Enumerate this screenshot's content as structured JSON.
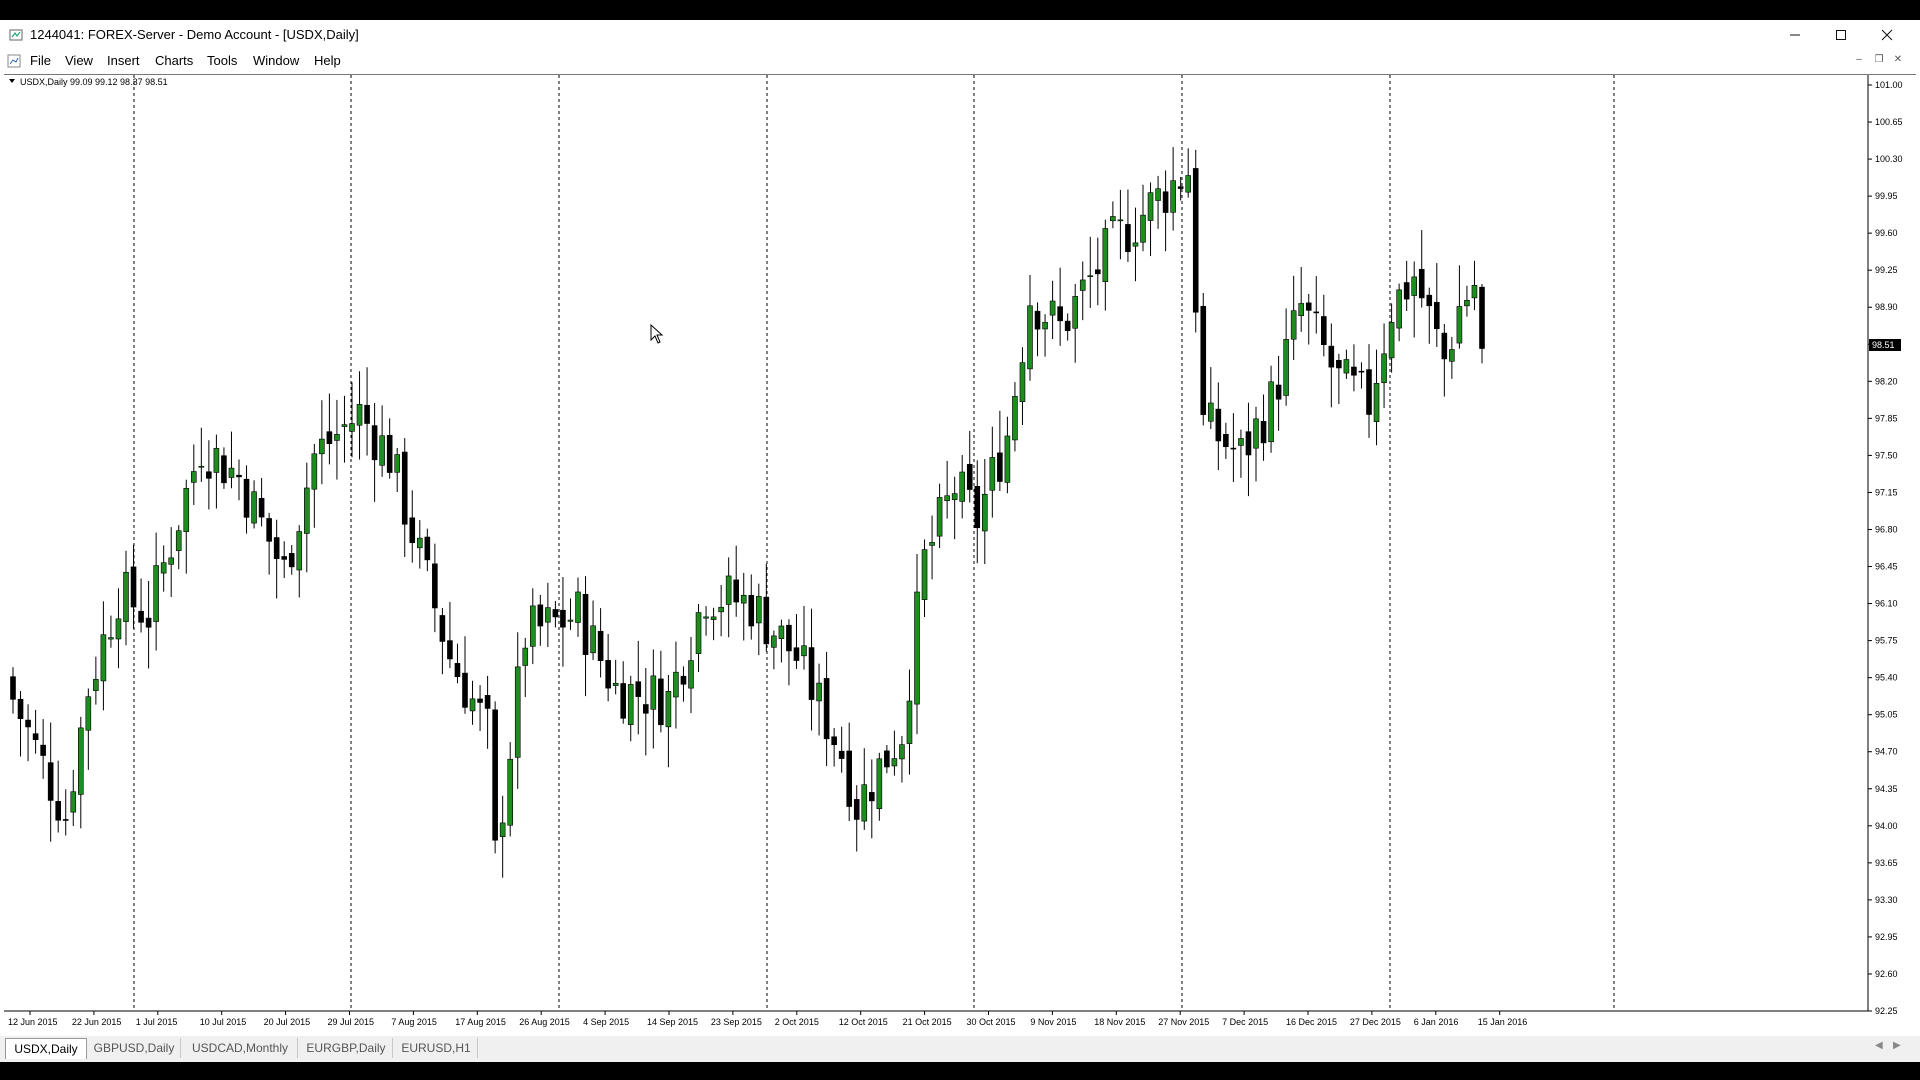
{
  "window": {
    "title": "1244041: FOREX-Server - Demo Account - [USDX,Daily]"
  },
  "menu": [
    "File",
    "View",
    "Insert",
    "Charts",
    "Tools",
    "Window",
    "Help"
  ],
  "chart": {
    "header": "USDX,Daily  99.09 99.12 98.37 98.51",
    "bid_label": "98.51",
    "date_labels": [
      "12 Jun 2015",
      "22 Jun 2015",
      "1 Jul 2015",
      "10 Jul 2015",
      "20 Jul 2015",
      "29 Jul 2015",
      "7 Aug 2015",
      "17 Aug 2015",
      "26 Aug 2015",
      "4 Sep 2015",
      "14 Sep 2015",
      "23 Sep 2015",
      "2 Oct 2015",
      "12 Oct 2015",
      "21 Oct 2015",
      "30 Oct 2015",
      "9 Nov 2015",
      "18 Nov 2015",
      "27 Nov 2015",
      "7 Dec 2015",
      "16 Dec 2015",
      "27 Dec 2015",
      "6 Jan 2016",
      "15 Jan 2016"
    ]
  },
  "chart_data": {
    "type": "candlestick",
    "symbol": "USDX",
    "timeframe": "Daily",
    "last_bar": {
      "open": 99.09,
      "high": 99.12,
      "low": 98.37,
      "close": 98.51
    },
    "ylim": [
      92.25,
      101.0
    ],
    "y_ticks": [
      "101.00",
      "100.65",
      "100.30",
      "99.95",
      "99.60",
      "99.25",
      "98.90",
      "98.55",
      "98.20",
      "97.85",
      "97.50",
      "97.15",
      "96.80",
      "96.45",
      "96.10",
      "95.75",
      "95.40",
      "95.05",
      "94.70",
      "94.35",
      "94.00",
      "93.65",
      "93.30",
      "92.95",
      "92.60",
      "92.25"
    ],
    "bull_color": "#1e8c1e",
    "bear_color": "#000000",
    "close_path": [
      [
        0,
        95.2
      ],
      [
        7,
        94.1
      ],
      [
        10,
        95.3
      ],
      [
        14,
        96.2
      ],
      [
        18,
        96.0
      ],
      [
        25,
        97.6
      ],
      [
        30,
        97.3
      ],
      [
        36,
        96.4
      ],
      [
        40,
        97.5
      ],
      [
        46,
        97.9
      ],
      [
        50,
        97.5
      ],
      [
        55,
        96.3
      ],
      [
        58,
        95.6
      ],
      [
        63,
        94.9
      ],
      [
        64,
        93.7
      ],
      [
        68,
        95.8
      ],
      [
        75,
        96.0
      ],
      [
        80,
        95.3
      ],
      [
        87,
        95.2
      ],
      [
        92,
        96.2
      ],
      [
        98,
        96.1
      ],
      [
        104,
        95.6
      ],
      [
        110,
        94.7
      ],
      [
        112,
        94.2
      ],
      [
        118,
        94.9
      ],
      [
        121,
        96.5
      ],
      [
        125,
        97.2
      ],
      [
        128,
        96.9
      ],
      [
        132,
        97.7
      ],
      [
        135,
        99.0
      ],
      [
        139,
        98.7
      ],
      [
        146,
        99.5
      ],
      [
        153,
        100.0
      ],
      [
        156,
        100.2
      ],
      [
        158,
        97.8
      ],
      [
        163,
        97.5
      ],
      [
        167,
        98.0
      ],
      [
        171,
        98.9
      ],
      [
        176,
        98.2
      ],
      [
        180,
        98.0
      ],
      [
        183,
        98.9
      ],
      [
        186,
        99.2
      ],
      [
        190,
        98.4
      ],
      [
        192,
        98.9
      ],
      [
        194,
        99.12
      ],
      [
        195,
        98.51
      ]
    ]
  },
  "tabs": [
    {
      "label": "USDX,Daily",
      "active": true
    },
    {
      "label": "GBPUSD,Daily",
      "active": false
    },
    {
      "label": "USDCAD,Monthly",
      "active": false
    },
    {
      "label": "EURGBP,Daily",
      "active": false
    },
    {
      "label": "EURUSD,H1",
      "active": false
    }
  ]
}
